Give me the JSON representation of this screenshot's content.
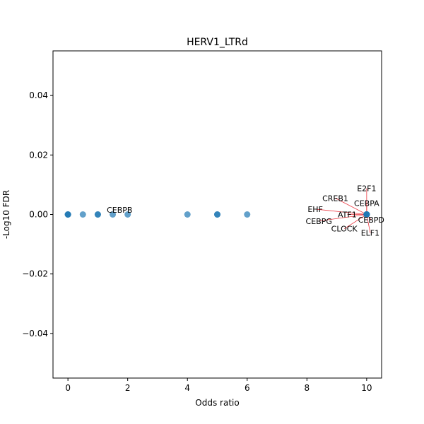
{
  "chart_data": {
    "type": "scatter",
    "title": "HERV1_LTRd",
    "xlabel": "Odds ratio",
    "ylabel": "-Log10 FDR",
    "xlim": [
      -0.5,
      10.5
    ],
    "ylim": [
      -0.055,
      0.055
    ],
    "xticks": [
      0,
      2,
      4,
      6,
      8,
      10
    ],
    "yticks": [
      -0.04,
      -0.02,
      0.0,
      0.02,
      0.04
    ],
    "xtick_labels": [
      "0",
      "2",
      "4",
      "6",
      "8",
      "10"
    ],
    "ytick_labels": [
      "−0.04",
      "−0.02",
      "0.00",
      "0.02",
      "0.04"
    ],
    "grid": false,
    "colors": {
      "points": "#1f77b4",
      "annotation_lines": "#e8141e"
    },
    "points": [
      {
        "x": 0,
        "y": 0.0
      },
      {
        "x": 0,
        "y": 0.0
      },
      {
        "x": 0,
        "y": 0.0
      },
      {
        "x": 0.5,
        "y": 0.0
      },
      {
        "x": 1,
        "y": 0.0
      },
      {
        "x": 1,
        "y": 0.0
      },
      {
        "x": 1.5,
        "y": 0.0,
        "label": "CEBPB"
      },
      {
        "x": 2,
        "y": 0.0
      },
      {
        "x": 4,
        "y": 0.0
      },
      {
        "x": 5,
        "y": 0.0
      },
      {
        "x": 5,
        "y": 0.0
      },
      {
        "x": 6,
        "y": 0.0
      },
      {
        "x": 10,
        "y": 0.0,
        "label": "E2F1"
      },
      {
        "x": 10,
        "y": 0.0,
        "label": "CREB1"
      },
      {
        "x": 10,
        "y": 0.0,
        "label": "CEBPA"
      },
      {
        "x": 10,
        "y": 0.0,
        "label": "EHF"
      },
      {
        "x": 10,
        "y": 0.0,
        "label": "ATF1"
      },
      {
        "x": 10,
        "y": 0.0,
        "label": "CEBPG"
      },
      {
        "x": 10,
        "y": 0.0,
        "label": "CEBPD"
      },
      {
        "x": 10,
        "y": 0.0,
        "label": "CLOCK"
      },
      {
        "x": 10,
        "y": 0.0,
        "label": "ELF1"
      }
    ],
    "annotations": [
      {
        "text": "CEBPB",
        "x": 1.5,
        "y": 0.0,
        "text_x": 1.3,
        "text_y": 0.0015,
        "anchor": "start",
        "line": false
      },
      {
        "text": "E2F1",
        "x": 10,
        "y": 0.0,
        "text_x": 10.0,
        "text_y": 0.0088,
        "anchor": "middle",
        "line": true
      },
      {
        "text": "CREB1",
        "x": 10,
        "y": 0.0,
        "text_x": 8.95,
        "text_y": 0.0055,
        "anchor": "middle",
        "line": true
      },
      {
        "text": "CEBPA",
        "x": 10,
        "y": 0.0,
        "text_x": 10.0,
        "text_y": 0.0038,
        "anchor": "middle",
        "line": true
      },
      {
        "text": "EHF",
        "x": 10,
        "y": 0.0,
        "text_x": 8.28,
        "text_y": 0.0018,
        "anchor": "middle",
        "line": true
      },
      {
        "text": "ATF1",
        "x": 10,
        "y": 0.0,
        "text_x": 9.35,
        "text_y": 0.0,
        "anchor": "middle",
        "line": true
      },
      {
        "text": "CEBPG",
        "x": 10,
        "y": 0.0,
        "text_x": 8.4,
        "text_y": -0.0022,
        "anchor": "middle",
        "line": true
      },
      {
        "text": "CEBPD",
        "x": 10,
        "y": 0.0,
        "text_x": 10.15,
        "text_y": -0.0018,
        "anchor": "middle",
        "line": true
      },
      {
        "text": "CLOCK",
        "x": 10,
        "y": 0.0,
        "text_x": 9.25,
        "text_y": -0.0048,
        "anchor": "middle",
        "line": true
      },
      {
        "text": "ELF1",
        "x": 10,
        "y": 0.0,
        "text_x": 10.12,
        "text_y": -0.0062,
        "anchor": "middle",
        "line": true
      }
    ]
  }
}
